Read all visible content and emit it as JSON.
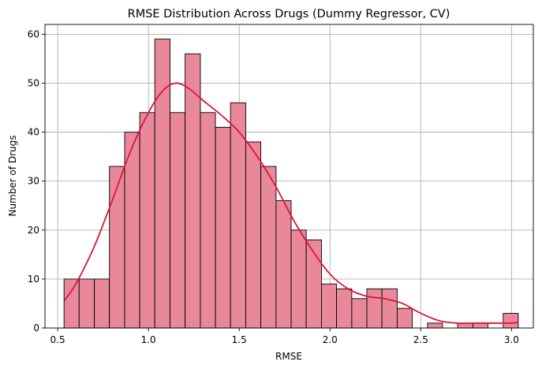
{
  "chart_data": {
    "type": "histogram",
    "title": "RMSE Distribution Across Drugs (Dummy Regressor, CV)",
    "xlabel": "RMSE",
    "ylabel": "Number of Drugs",
    "xlim": [
      0.43,
      3.12
    ],
    "ylim": [
      0,
      62
    ],
    "x_ticks": [
      0.5,
      1.0,
      1.5,
      2.0,
      2.5,
      3.0
    ],
    "y_ticks": [
      0,
      10,
      20,
      30,
      40,
      50,
      60
    ],
    "grid": true,
    "legend": "none",
    "bin_start": 0.535,
    "bin_width": 0.0834,
    "bins": [
      {
        "x0": 0.535,
        "x1": 0.618,
        "count": 10
      },
      {
        "x0": 0.618,
        "x1": 0.702,
        "count": 10
      },
      {
        "x0": 0.702,
        "x1": 0.785,
        "count": 10
      },
      {
        "x0": 0.785,
        "x1": 0.869,
        "count": 33
      },
      {
        "x0": 0.869,
        "x1": 0.952,
        "count": 40
      },
      {
        "x0": 0.952,
        "x1": 1.035,
        "count": 44
      },
      {
        "x0": 1.035,
        "x1": 1.119,
        "count": 59
      },
      {
        "x0": 1.119,
        "x1": 1.202,
        "count": 44
      },
      {
        "x0": 1.202,
        "x1": 1.286,
        "count": 56
      },
      {
        "x0": 1.286,
        "x1": 1.369,
        "count": 44
      },
      {
        "x0": 1.369,
        "x1": 1.452,
        "count": 41
      },
      {
        "x0": 1.452,
        "x1": 1.536,
        "count": 46
      },
      {
        "x0": 1.536,
        "x1": 1.619,
        "count": 38
      },
      {
        "x0": 1.619,
        "x1": 1.703,
        "count": 33
      },
      {
        "x0": 1.703,
        "x1": 1.786,
        "count": 26
      },
      {
        "x0": 1.786,
        "x1": 1.869,
        "count": 20
      },
      {
        "x0": 1.869,
        "x1": 1.953,
        "count": 18
      },
      {
        "x0": 1.953,
        "x1": 2.036,
        "count": 9
      },
      {
        "x0": 2.036,
        "x1": 2.12,
        "count": 8
      },
      {
        "x0": 2.12,
        "x1": 2.203,
        "count": 6
      },
      {
        "x0": 2.203,
        "x1": 2.286,
        "count": 8
      },
      {
        "x0": 2.286,
        "x1": 2.37,
        "count": 8
      },
      {
        "x0": 2.37,
        "x1": 2.453,
        "count": 4
      },
      {
        "x0": 2.453,
        "x1": 2.537,
        "count": 0
      },
      {
        "x0": 2.537,
        "x1": 2.62,
        "count": 1
      },
      {
        "x0": 2.62,
        "x1": 2.703,
        "count": 0
      },
      {
        "x0": 2.703,
        "x1": 2.787,
        "count": 1
      },
      {
        "x0": 2.787,
        "x1": 2.87,
        "count": 1
      },
      {
        "x0": 2.87,
        "x1": 2.954,
        "count": 0
      },
      {
        "x0": 2.954,
        "x1": 3.037,
        "count": 3
      }
    ],
    "kde_curve": {
      "x": [
        0.535,
        0.6,
        0.7,
        0.8,
        0.9,
        1.0,
        1.08,
        1.15,
        1.22,
        1.3,
        1.4,
        1.5,
        1.6,
        1.7,
        1.8,
        1.9,
        2.0,
        2.1,
        2.2,
        2.3,
        2.4,
        2.5,
        2.6,
        2.7,
        2.8,
        2.9,
        3.0,
        3.037
      ],
      "y": [
        5.5,
        9,
        16.5,
        26,
        36,
        44,
        48.5,
        50,
        49,
        46.5,
        43.5,
        40,
        35,
        29,
        22,
        16,
        11,
        8,
        6.5,
        6,
        5,
        3,
        1.5,
        1,
        1,
        1,
        1,
        1.2
      ]
    },
    "bar_fill": "#e8889a",
    "bar_edge": "#000000",
    "kde_color": "#dc143c",
    "grid_color": "#b0b0b0"
  }
}
